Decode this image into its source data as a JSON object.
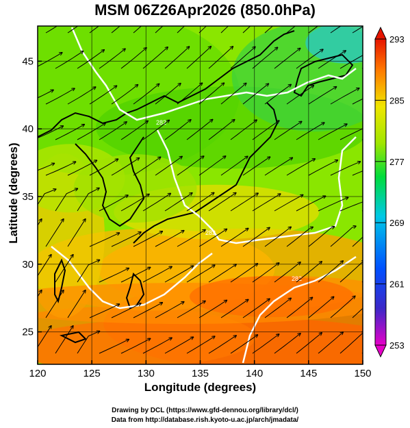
{
  "title": "MSM 06Z26Apr2026 (850.0hPa)",
  "axes": {
    "xlabel": "Longitude (degrees)",
    "ylabel": "Latitude  (degrees)",
    "x_range": [
      120,
      150
    ],
    "y_range": [
      22.6,
      47.6
    ],
    "x_ticks": [
      "120",
      "125",
      "130",
      "135",
      "140",
      "145",
      "150"
    ],
    "y_ticks": [
      "25",
      "30",
      "35",
      "40",
      "45"
    ],
    "grid": true
  },
  "colorbar": {
    "min": 253,
    "max": 293,
    "tick_labels": [
      "293",
      "285",
      "277",
      "269",
      "261",
      "253"
    ],
    "palette": [
      "#e600c8",
      "#3c28c8",
      "#0050ff",
      "#00c8e6",
      "#00dc3c",
      "#a0e600",
      "#f0e600",
      "#ff7800",
      "#e61400"
    ]
  },
  "field": {
    "variable": "temperature",
    "contour_labels": [
      "282",
      "282",
      "282"
    ]
  },
  "credits": {
    "line1": "Drawing by DCL (https://www.gfd-dennou.org/library/dcl/)",
    "line2": "Data from http://database.rish.kyoto-u.ac.jp/arch/jmadata/"
  }
}
